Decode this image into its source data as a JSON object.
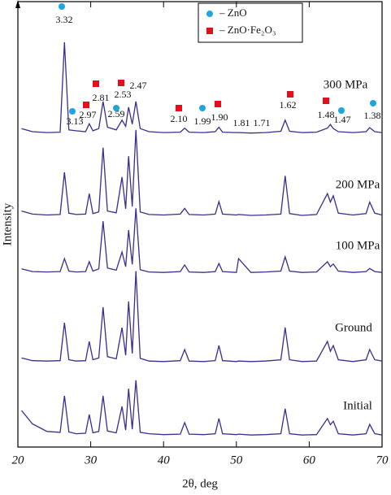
{
  "chart_data": {
    "type": "line",
    "xlabel": "2θ, deg",
    "ylabel": "Intensity",
    "xlim": [
      20,
      70
    ],
    "ylim": [
      0,
      100
    ],
    "xticks": [
      20,
      30,
      40,
      50,
      60,
      70
    ],
    "x": [
      20.5,
      22,
      24,
      25.8,
      26.4,
      27,
      28,
      29.3,
      29.8,
      30.3,
      31.1,
      31.7,
      32.3,
      33.5,
      34.3,
      34.8,
      35.2,
      35.7,
      36.2,
      36.8,
      38,
      40,
      42.3,
      42.9,
      43.5,
      45.5,
      47.1,
      47.6,
      48.1,
      50,
      50.3,
      52,
      54,
      56.1,
      56.7,
      57.3,
      59,
      61,
      62.5,
      62.9,
      63.3,
      64,
      66,
      67.8,
      68.3,
      69,
      70
    ],
    "series": [
      {
        "name": "300 MPa",
        "color": "#3d2b8e",
        "values": [
          71.5,
          70.8,
          70.6,
          70.7,
          90.9,
          71.2,
          71,
          70.8,
          72.6,
          71,
          71.5,
          77.6,
          71.8,
          71.2,
          73.4,
          72,
          76.3,
          72.5,
          77.6,
          71.5,
          70.8,
          70.6,
          70.7,
          71.6,
          70.7,
          70.6,
          70.8,
          71.8,
          70.7,
          70.6,
          70.6,
          70.5,
          70.6,
          70.9,
          73.4,
          70.9,
          70.6,
          70.7,
          71.6,
          72.4,
          71.5,
          70.8,
          70.6,
          70.8,
          71.7,
          70.8,
          70.6
        ]
      },
      {
        "name": "200 MPa",
        "color": "#3d2b8e",
        "values": [
          53,
          52.3,
          52.1,
          52.2,
          61.7,
          52.5,
          52.2,
          52.3,
          56.9,
          52.4,
          52.8,
          67.2,
          53,
          52.6,
          60.6,
          53.5,
          65.3,
          54,
          71.2,
          52.8,
          52.2,
          52.1,
          52.3,
          53.6,
          52.2,
          52.1,
          52.3,
          55.1,
          52.3,
          52.1,
          52.2,
          52,
          52.1,
          52.3,
          60.9,
          52.4,
          52,
          52.2,
          56.9,
          55,
          56.4,
          52.5,
          52.1,
          52.4,
          55,
          52.5,
          52.1
        ]
      },
      {
        "name": "100 MPa",
        "color": "#3d2b8e",
        "values": [
          40,
          39.4,
          39.3,
          39.4,
          42.3,
          39.5,
          39.3,
          39.4,
          41.6,
          39.5,
          40,
          50.7,
          40.2,
          39.7,
          43.8,
          40.5,
          48.7,
          41,
          53.6,
          39.8,
          39.3,
          39.2,
          39.4,
          40.9,
          39.3,
          39.2,
          39.4,
          41.2,
          39.4,
          39.2,
          42.3,
          39.2,
          39.3,
          39.5,
          42.7,
          39.5,
          39.2,
          39.3,
          41.6,
          40.5,
          41.1,
          39.5,
          39.2,
          39.4,
          40.1,
          39.4,
          39.2
        ]
      },
      {
        "name": "Ground",
        "color": "#3d2b8e",
        "values": [
          20,
          19.4,
          19.3,
          19.4,
          27.9,
          19.6,
          19.3,
          19.4,
          23.7,
          19.6,
          20,
          31.4,
          20.3,
          19.8,
          26.8,
          20.6,
          32.7,
          21,
          39.5,
          19.9,
          19.3,
          19.2,
          19.4,
          21.9,
          19.3,
          19.2,
          19.4,
          22.8,
          19.4,
          19.2,
          19.3,
          19.2,
          19.3,
          19.6,
          26.8,
          19.6,
          19.2,
          19.3,
          23.7,
          21.5,
          22.8,
          19.6,
          19.2,
          19.6,
          21.9,
          19.6,
          19.3
        ]
      },
      {
        "name": "Initial",
        "color": "#3d2b8e",
        "values": [
          8.2,
          5.2,
          3.5,
          3.3,
          11.5,
          3.4,
          3,
          3.1,
          7.3,
          3.2,
          3.5,
          11.5,
          3.6,
          3.2,
          9.1,
          3.8,
          13.1,
          4,
          15,
          3.3,
          3,
          2.8,
          2.9,
          5.5,
          2.9,
          2.8,
          3,
          6.4,
          3,
          2.8,
          2.9,
          2.7,
          2.8,
          3,
          8.6,
          3,
          2.7,
          2.8,
          6.4,
          5,
          5.8,
          3,
          2.7,
          3,
          5.1,
          3,
          2.7
        ]
      }
    ],
    "legend": [
      {
        "name": "– ZnO",
        "color": "#1ea6de",
        "marker": "circle"
      },
      {
        "name": "– ZnO·Fe₂O₃",
        "color": "#e3101c",
        "marker": "square"
      }
    ],
    "peak_labels": [
      {
        "label": "3.32",
        "marker": 0
      },
      {
        "label": "2.97",
        "marker": 1
      },
      {
        "label": "3.13",
        "marker": 0
      },
      {
        "label": "2.81",
        "marker": 1
      },
      {
        "label": "2.59",
        "marker": 0
      },
      {
        "label": "2.53",
        "marker": 1
      },
      {
        "label": "2.47"
      },
      {
        "label": "2.10",
        "marker": 1
      },
      {
        "label": "1.99",
        "marker": 0
      },
      {
        "label": "1.90",
        "marker": 1
      },
      {
        "label": "1.81"
      },
      {
        "label": "1.71"
      },
      {
        "label": "1.62",
        "marker": 1
      },
      {
        "label": "1.48",
        "marker": 1
      },
      {
        "label": "1.47",
        "marker": 0
      },
      {
        "label": "1.38",
        "marker": 0
      }
    ]
  }
}
